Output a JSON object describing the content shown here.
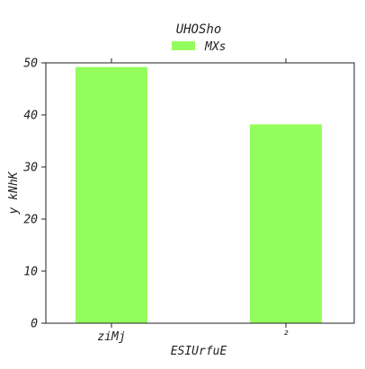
{
  "chart_data": {
    "type": "bar",
    "title": "UHOSho",
    "xlabel": "ESIUrfuE",
    "ylabel": "y kNhK",
    "categories": [
      "ziMj",
      "₂"
    ],
    "series": [
      {
        "name": "MXs",
        "values": [
          49.2,
          38.2
        ],
        "color": "#94fd5e"
      }
    ],
    "ylim": [
      0,
      50
    ],
    "yticks": [
      0,
      10,
      20,
      30,
      40,
      50
    ],
    "grid": false,
    "legend_position": "top-center"
  }
}
